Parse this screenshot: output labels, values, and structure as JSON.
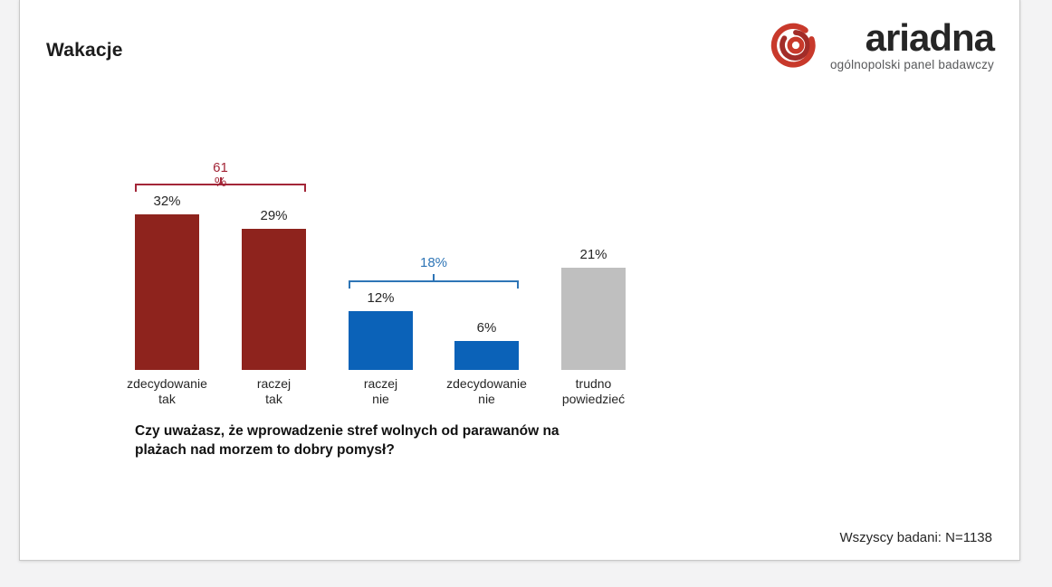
{
  "page": {
    "title": "Wakacje"
  },
  "logo": {
    "name": "ariadna",
    "tagline": "ogólnopolski panel badawczy",
    "accent_color": "#c8392b",
    "accent_dark_color": "#a22c28",
    "text_color": "#262626"
  },
  "chart_data": {
    "type": "bar",
    "categories": [
      "zdecydowanie tak",
      "raczej tak",
      "raczej nie",
      "zdecydowanie nie",
      "trudno powiedzieć"
    ],
    "values": [
      32,
      29,
      12,
      6,
      21
    ],
    "value_suffix": "%",
    "bar_colors": [
      "#8e231d",
      "#8e231d",
      "#0b62b8",
      "#0b62b8",
      "#bfbfbf"
    ],
    "title": "",
    "xlabel": "",
    "ylabel": "",
    "ylim": [
      0,
      35
    ],
    "grid": false,
    "legend": false,
    "annotations": [
      {
        "type": "bracket",
        "value": 61,
        "label_lines": [
          "61",
          "%"
        ],
        "from": 0,
        "to": 1,
        "color": "#a32638"
      },
      {
        "type": "bracket",
        "value": 18,
        "label_lines": [
          "18%"
        ],
        "from": 2,
        "to": 3,
        "color": "#2e75b6"
      }
    ]
  },
  "question": "Czy uważasz, że wprowadzenie stref wolnych od parawanów na plażach nad morzem to dobry pomysł?",
  "footer": {
    "sample_note": "Wszyscy badani: N=1138"
  }
}
